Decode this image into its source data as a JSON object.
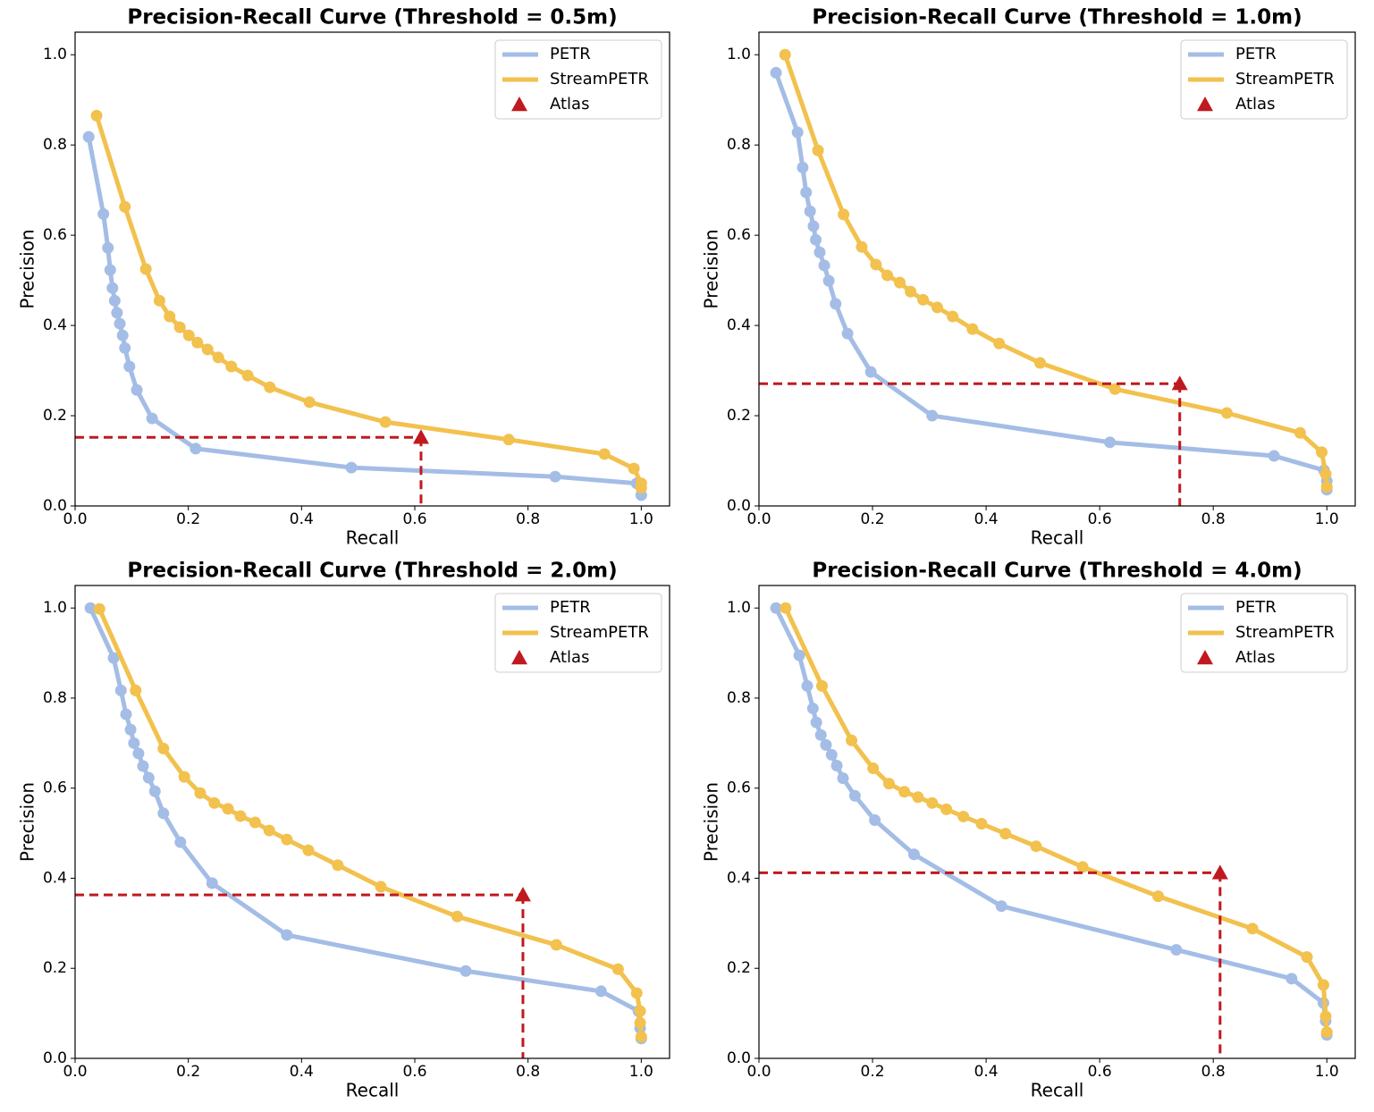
{
  "chart_data": [
    {
      "type": "line",
      "title": "Precision-Recall Curve (Threshold = 0.5m)",
      "x_label": "Recall",
      "y_label": "Precision",
      "xlim": [
        0,
        1.05
      ],
      "ylim": [
        0,
        1.05
      ],
      "xticks": [
        {
          "value": 0,
          "label": "0.0"
        },
        0.2,
        0.4,
        0.6,
        0.8,
        {
          "value": 1,
          "label": "1.0"
        }
      ],
      "yticks": [
        {
          "value": 0,
          "label": "0.0"
        },
        0.2,
        0.4,
        0.6,
        0.8,
        {
          "value": 1,
          "label": "1.0"
        }
      ],
      "grid": false,
      "legend": "upper right",
      "series": [
        {
          "name": "PETR",
          "color": "#a4bde6",
          "marker": "circle",
          "x": [
            0.024,
            0.05,
            0.058,
            0.062,
            0.066,
            0.07,
            0.074,
            0.079,
            0.084,
            0.088,
            0.096,
            0.109,
            0.136,
            0.213,
            0.488,
            0.848,
            0.992,
            1.0
          ],
          "values": [
            0.818,
            0.647,
            0.572,
            0.523,
            0.483,
            0.455,
            0.428,
            0.404,
            0.378,
            0.35,
            0.309,
            0.257,
            0.194,
            0.127,
            0.085,
            0.065,
            0.05,
            0.024
          ]
        },
        {
          "name": "StreamPETR",
          "color": "#f2c14e",
          "marker": "circle",
          "x": [
            0.038,
            0.088,
            0.125,
            0.149,
            0.167,
            0.185,
            0.201,
            0.216,
            0.234,
            0.253,
            0.276,
            0.305,
            0.344,
            0.414,
            0.548,
            0.766,
            0.935,
            0.987,
            1.0,
            1.0
          ],
          "values": [
            0.865,
            0.663,
            0.525,
            0.455,
            0.42,
            0.396,
            0.378,
            0.362,
            0.347,
            0.329,
            0.309,
            0.289,
            0.263,
            0.23,
            0.186,
            0.147,
            0.115,
            0.083,
            0.05,
            0.04
          ]
        },
        {
          "name": "Atlas",
          "color": "#c0191f",
          "marker": "triangle",
          "x": [
            0.611
          ],
          "values": [
            0.152
          ]
        }
      ]
    },
    {
      "type": "line",
      "title": "Precision-Recall Curve (Threshold = 1.0m)",
      "x_label": "Recall",
      "y_label": "Precision",
      "xlim": [
        0,
        1.05
      ],
      "ylim": [
        0,
        1.05
      ],
      "xticks": [
        {
          "value": 0,
          "label": "0.0"
        },
        0.2,
        0.4,
        0.6,
        0.8,
        {
          "value": 1,
          "label": "1.0"
        }
      ],
      "yticks": [
        {
          "value": 0,
          "label": "0.0"
        },
        0.2,
        0.4,
        0.6,
        0.8,
        {
          "value": 1,
          "label": "1.0"
        }
      ],
      "grid": false,
      "legend": "upper right",
      "series": [
        {
          "name": "PETR",
          "color": "#a4bde6",
          "marker": "circle",
          "x": [
            0.03,
            0.068,
            0.077,
            0.083,
            0.09,
            0.096,
            0.1,
            0.107,
            0.115,
            0.123,
            0.135,
            0.156,
            0.197,
            0.305,
            0.618,
            0.907,
            0.995,
            1.0,
            1.0
          ],
          "values": [
            0.96,
            0.828,
            0.75,
            0.695,
            0.653,
            0.62,
            0.59,
            0.562,
            0.533,
            0.499,
            0.448,
            0.382,
            0.297,
            0.2,
            0.141,
            0.111,
            0.079,
            0.055,
            0.036
          ]
        },
        {
          "name": "StreamPETR",
          "color": "#f2c14e",
          "marker": "circle",
          "x": [
            0.046,
            0.104,
            0.149,
            0.181,
            0.206,
            0.226,
            0.248,
            0.267,
            0.289,
            0.314,
            0.341,
            0.376,
            0.423,
            0.495,
            0.627,
            0.824,
            0.953,
            0.991,
            0.998,
            1.0
          ],
          "values": [
            1.0,
            0.788,
            0.646,
            0.574,
            0.535,
            0.511,
            0.495,
            0.475,
            0.457,
            0.44,
            0.42,
            0.392,
            0.36,
            0.317,
            0.259,
            0.206,
            0.162,
            0.119,
            0.071,
            0.042
          ]
        },
        {
          "name": "Atlas",
          "color": "#c0191f",
          "marker": "triangle",
          "x": [
            0.741
          ],
          "values": [
            0.271
          ]
        }
      ]
    },
    {
      "type": "line",
      "title": "Precision-Recall Curve (Threshold = 2.0m)",
      "x_label": "Recall",
      "y_label": "Precision",
      "xlim": [
        0,
        1.05
      ],
      "ylim": [
        0,
        1.05
      ],
      "xticks": [
        {
          "value": 0,
          "label": "0.0"
        },
        0.2,
        0.4,
        0.6,
        0.8,
        {
          "value": 1,
          "label": "1.0"
        }
      ],
      "yticks": [
        {
          "value": 0,
          "label": "0.0"
        },
        0.2,
        0.4,
        0.6,
        0.8,
        {
          "value": 1,
          "label": "1.0"
        }
      ],
      "grid": false,
      "legend": "upper right",
      "series": [
        {
          "name": "PETR",
          "color": "#a4bde6",
          "marker": "circle",
          "x": [
            0.027,
            0.068,
            0.081,
            0.09,
            0.098,
            0.104,
            0.112,
            0.12,
            0.13,
            0.141,
            0.156,
            0.186,
            0.242,
            0.374,
            0.69,
            0.929,
            0.995,
            0.998,
            1.0
          ],
          "values": [
            1.0,
            0.889,
            0.817,
            0.764,
            0.73,
            0.7,
            0.677,
            0.649,
            0.623,
            0.593,
            0.544,
            0.48,
            0.389,
            0.274,
            0.194,
            0.149,
            0.105,
            0.067,
            0.044
          ]
        },
        {
          "name": "StreamPETR",
          "color": "#f2c14e",
          "marker": "circle",
          "x": [
            0.043,
            0.107,
            0.156,
            0.193,
            0.221,
            0.246,
            0.27,
            0.292,
            0.318,
            0.343,
            0.374,
            0.412,
            0.464,
            0.54,
            0.675,
            0.85,
            0.959,
            0.992,
            0.998,
            0.998,
            1.0
          ],
          "values": [
            0.998,
            0.817,
            0.688,
            0.625,
            0.589,
            0.567,
            0.554,
            0.538,
            0.524,
            0.506,
            0.486,
            0.462,
            0.429,
            0.381,
            0.315,
            0.252,
            0.198,
            0.145,
            0.105,
            0.079,
            0.048
          ]
        },
        {
          "name": "Atlas",
          "color": "#c0191f",
          "marker": "triangle",
          "x": [
            0.791
          ],
          "values": [
            0.363
          ]
        }
      ]
    },
    {
      "type": "line",
      "title": "Precision-Recall Curve (Threshold = 4.0m)",
      "x_label": "Recall",
      "y_label": "Precision",
      "xlim": [
        0,
        1.05
      ],
      "ylim": [
        0,
        1.05
      ],
      "xticks": [
        {
          "value": 0,
          "label": "0.0"
        },
        0.2,
        0.4,
        0.6,
        0.8,
        {
          "value": 1,
          "label": "1.0"
        }
      ],
      "yticks": [
        {
          "value": 0,
          "label": "0.0"
        },
        0.2,
        0.4,
        0.6,
        0.8,
        {
          "value": 1,
          "label": "1.0"
        }
      ],
      "grid": false,
      "legend": "upper right",
      "series": [
        {
          "name": "PETR",
          "color": "#a4bde6",
          "marker": "circle",
          "x": [
            0.03,
            0.071,
            0.085,
            0.095,
            0.101,
            0.109,
            0.118,
            0.128,
            0.137,
            0.148,
            0.169,
            0.204,
            0.273,
            0.427,
            0.735,
            0.938,
            0.994,
            0.998,
            1.0
          ],
          "values": [
            1.0,
            0.895,
            0.827,
            0.777,
            0.746,
            0.718,
            0.696,
            0.674,
            0.65,
            0.622,
            0.583,
            0.529,
            0.453,
            0.338,
            0.241,
            0.177,
            0.123,
            0.083,
            0.052
          ]
        },
        {
          "name": "StreamPETR",
          "color": "#f2c14e",
          "marker": "circle",
          "x": [
            0.047,
            0.111,
            0.163,
            0.201,
            0.229,
            0.256,
            0.28,
            0.305,
            0.33,
            0.36,
            0.392,
            0.434,
            0.488,
            0.57,
            0.703,
            0.869,
            0.965,
            0.994,
            0.998,
            1.0
          ],
          "values": [
            1.0,
            0.827,
            0.706,
            0.644,
            0.61,
            0.592,
            0.58,
            0.567,
            0.553,
            0.537,
            0.521,
            0.499,
            0.471,
            0.425,
            0.36,
            0.288,
            0.225,
            0.163,
            0.093,
            0.058
          ]
        },
        {
          "name": "Atlas",
          "color": "#c0191f",
          "marker": "triangle",
          "x": [
            0.812
          ],
          "values": [
            0.412
          ]
        }
      ]
    }
  ]
}
